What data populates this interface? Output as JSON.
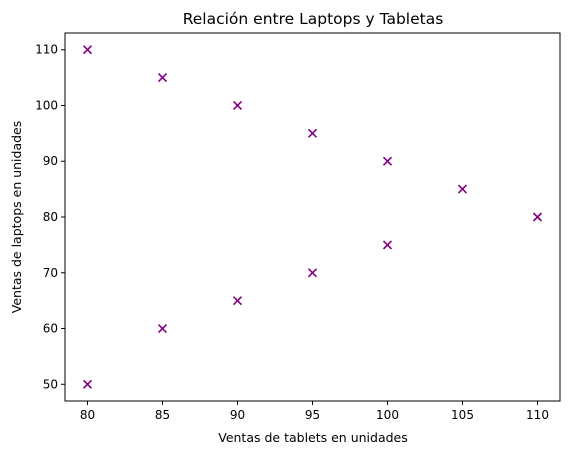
{
  "chart_data": {
    "type": "scatter",
    "title": "Relación entre Laptops y Tabletas",
    "xlabel": "Ventas de tablets en unidades",
    "ylabel": "Ventas de laptops en unidades",
    "xlim": [
      78.5,
      111.5
    ],
    "ylim": [
      47,
      113
    ],
    "xticks": [
      80,
      85,
      90,
      95,
      100,
      105,
      110
    ],
    "yticks": [
      50,
      60,
      70,
      80,
      90,
      100,
      110
    ],
    "grid": false,
    "marker": "x",
    "color": "#800080",
    "points": [
      {
        "x": 80,
        "y": 110
      },
      {
        "x": 85,
        "y": 105
      },
      {
        "x": 90,
        "y": 100
      },
      {
        "x": 95,
        "y": 95
      },
      {
        "x": 100,
        "y": 90
      },
      {
        "x": 105,
        "y": 85
      },
      {
        "x": 110,
        "y": 80
      },
      {
        "x": 80,
        "y": 50
      },
      {
        "x": 85,
        "y": 60
      },
      {
        "x": 90,
        "y": 65
      },
      {
        "x": 95,
        "y": 70
      },
      {
        "x": 100,
        "y": 75
      }
    ]
  }
}
